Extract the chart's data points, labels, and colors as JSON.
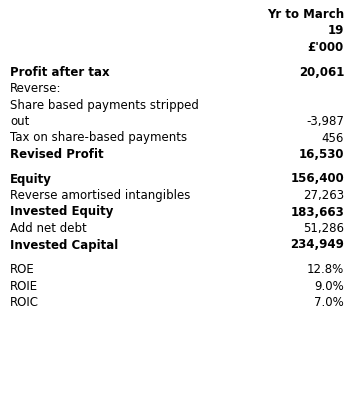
{
  "bg_color": "#ffffff",
  "text_color": "#000000",
  "font_size": 8.5,
  "rows": [
    {
      "label": "Yr to March",
      "value": "",
      "bold": true,
      "right_label": true,
      "spacer": false
    },
    {
      "label": "19",
      "value": "",
      "bold": true,
      "right_label": true,
      "spacer": false
    },
    {
      "label": "£'000",
      "value": "",
      "bold": true,
      "right_label": true,
      "spacer": false
    },
    {
      "label": "",
      "value": "",
      "bold": false,
      "right_label": false,
      "spacer": true
    },
    {
      "label": "Profit after tax",
      "value": "20,061",
      "bold": true,
      "right_label": false,
      "spacer": false
    },
    {
      "label": "Reverse:",
      "value": "",
      "bold": false,
      "right_label": false,
      "spacer": false
    },
    {
      "label": "Share based payments stripped",
      "value": "",
      "bold": false,
      "right_label": false,
      "spacer": false
    },
    {
      "label": "out",
      "value": "-3,987",
      "bold": false,
      "right_label": false,
      "spacer": false
    },
    {
      "label": "Tax on share-based payments",
      "value": "456",
      "bold": false,
      "right_label": false,
      "spacer": false
    },
    {
      "label": "Revised Profit",
      "value": "16,530",
      "bold": true,
      "right_label": false,
      "spacer": false
    },
    {
      "label": "",
      "value": "",
      "bold": false,
      "right_label": false,
      "spacer": true
    },
    {
      "label": "Equity",
      "value": "156,400",
      "bold": true,
      "right_label": false,
      "spacer": false
    },
    {
      "label": "Reverse amortised intangibles",
      "value": "27,263",
      "bold": false,
      "right_label": false,
      "spacer": false
    },
    {
      "label": "Invested Equity",
      "value": "183,663",
      "bold": true,
      "right_label": false,
      "spacer": false
    },
    {
      "label": "Add net debt",
      "value": "51,286",
      "bold": false,
      "right_label": false,
      "spacer": false
    },
    {
      "label": "Invested Capital",
      "value": "234,949",
      "bold": true,
      "right_label": false,
      "spacer": false
    },
    {
      "label": "",
      "value": "",
      "bold": false,
      "right_label": false,
      "spacer": true
    },
    {
      "label": "ROE",
      "value": "12.8%",
      "bold": false,
      "right_label": false,
      "spacer": false
    },
    {
      "label": "ROIE",
      "value": "9.0%",
      "bold": false,
      "right_label": false,
      "spacer": false
    },
    {
      "label": "ROIC",
      "value": "7.0%",
      "bold": false,
      "right_label": false,
      "spacer": false
    }
  ]
}
